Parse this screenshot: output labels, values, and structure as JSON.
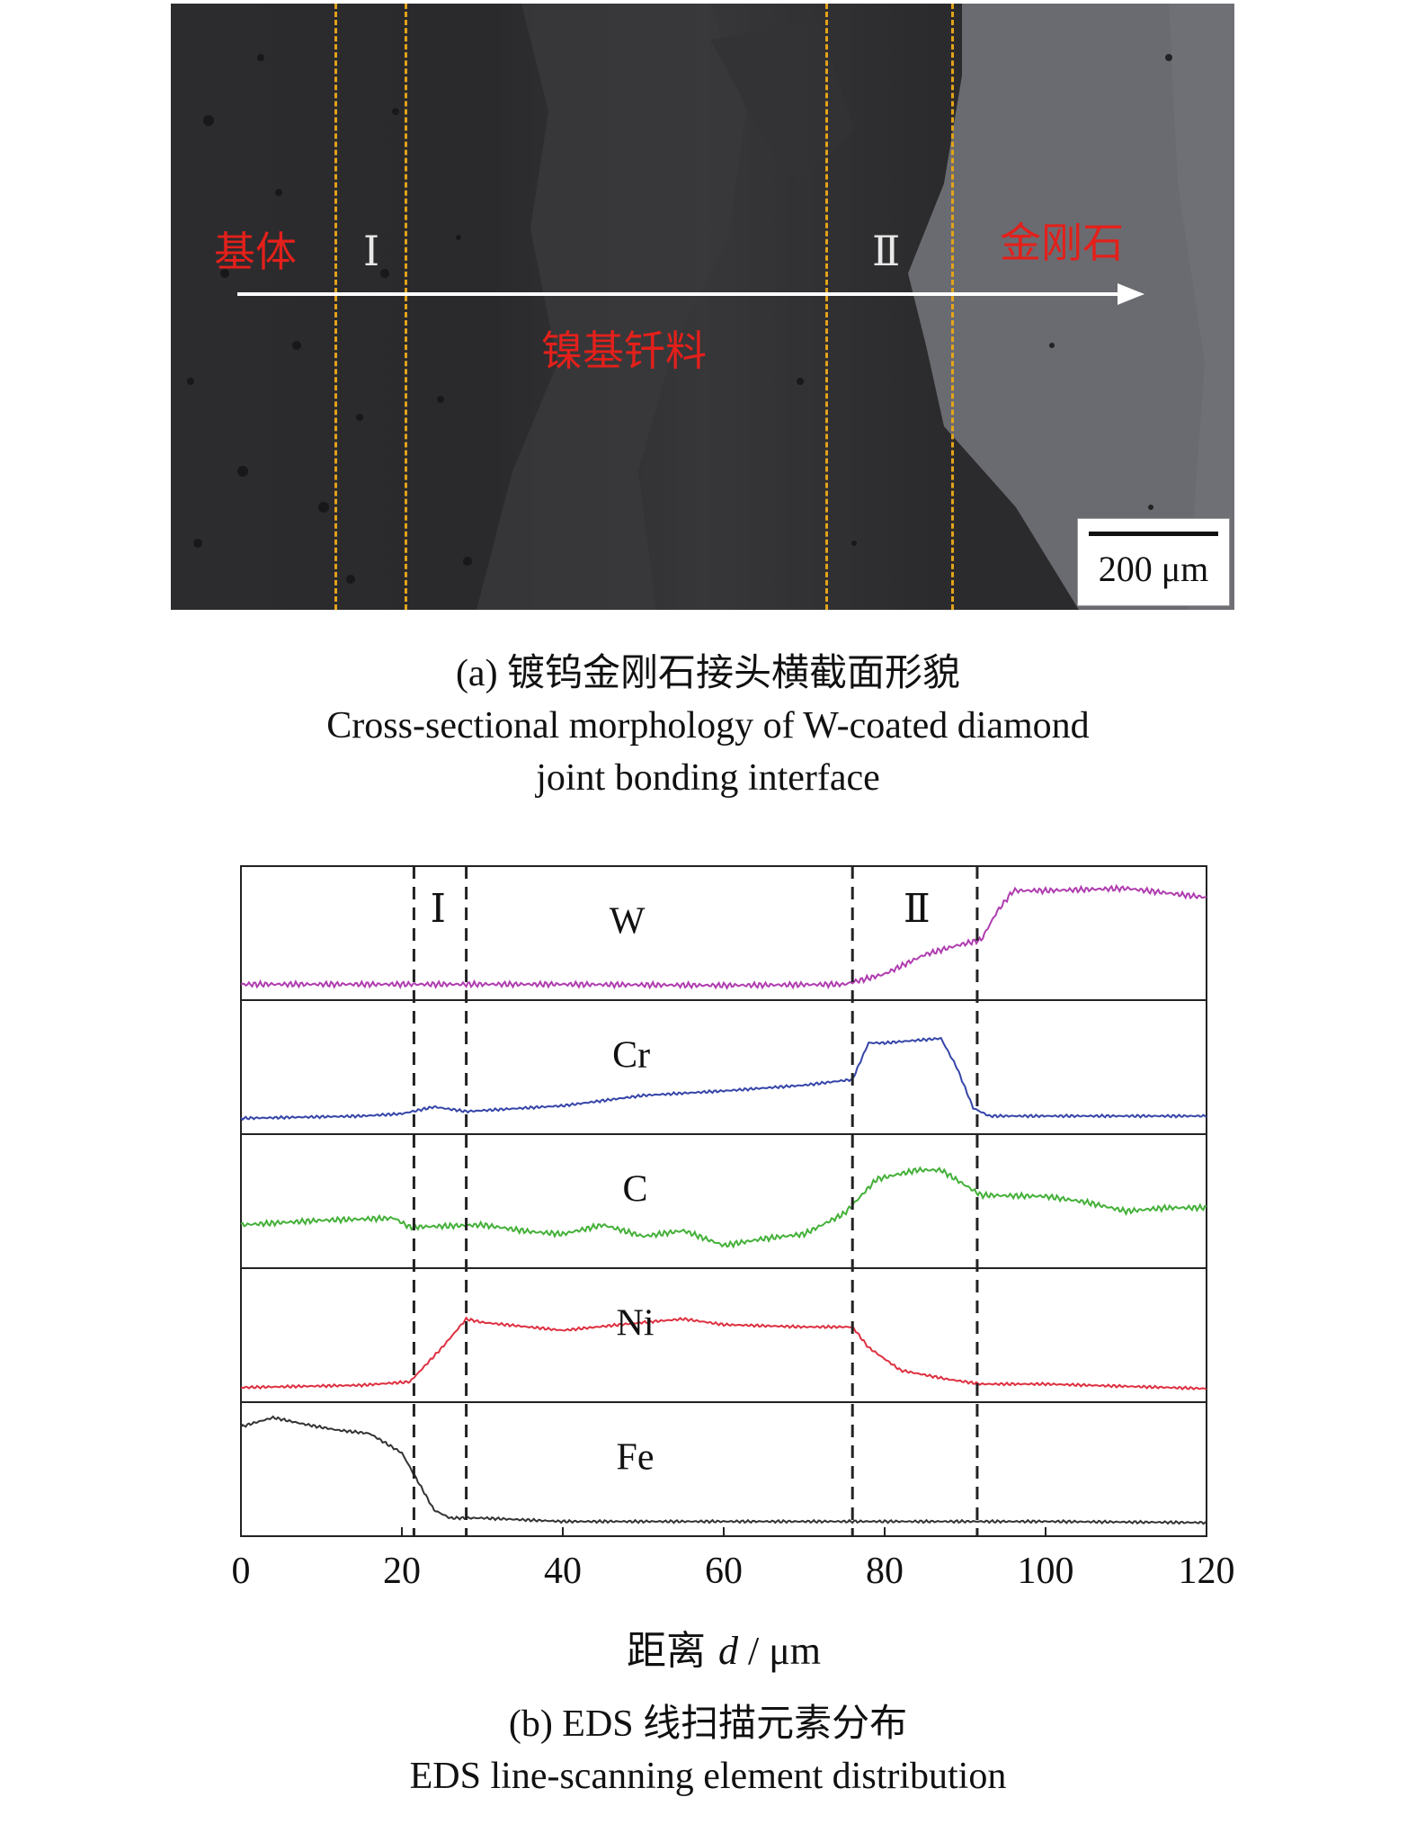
{
  "panel_a": {
    "labels": {
      "substrate": "基体",
      "zone1": "Ⅰ",
      "filler": "镍基钎料",
      "zone2": "Ⅱ",
      "diamond": "金刚石"
    },
    "scale_bar": "200 μm",
    "caption_cn": "(a) 镀钨金刚石接头横截面形貌",
    "caption_en_1": "Cross-sectional morphology of W-coated diamond",
    "caption_en_2": "joint bonding interface"
  },
  "panel_b": {
    "caption_cn": "(b) EDS 线扫描元素分布",
    "caption_en": "EDS line-scanning element distribution"
  },
  "chart_data": {
    "type": "line",
    "xlabel_prefix": "距离 ",
    "xlabel_var": "d",
    "xlabel_unit": " / μm",
    "xlim": [
      0,
      120
    ],
    "xticks": [
      "0",
      "20",
      "40",
      "60",
      "80",
      "100",
      "120"
    ],
    "boundaries": [
      21.5,
      28,
      76,
      91.5
    ],
    "zone_labels": [
      {
        "text": "Ⅰ",
        "x": 24.5
      },
      {
        "text": "Ⅱ",
        "x": 84
      }
    ],
    "series": [
      {
        "name": "W",
        "color": "#b03cb0",
        "label_x": 48,
        "points": [
          [
            0,
            0.06
          ],
          [
            20,
            0.06
          ],
          [
            40,
            0.06
          ],
          [
            60,
            0.05
          ],
          [
            75,
            0.06
          ],
          [
            80,
            0.15
          ],
          [
            85,
            0.32
          ],
          [
            89,
            0.4
          ],
          [
            92,
            0.45
          ],
          [
            94,
            0.7
          ],
          [
            96,
            0.88
          ],
          [
            100,
            0.88
          ],
          [
            110,
            0.9
          ],
          [
            120,
            0.82
          ]
        ]
      },
      {
        "name": "Cr",
        "color": "#3545a8",
        "label_x": 48.5,
        "points": [
          [
            0,
            0.06
          ],
          [
            15,
            0.08
          ],
          [
            20,
            0.1
          ],
          [
            24,
            0.16
          ],
          [
            28,
            0.12
          ],
          [
            40,
            0.17
          ],
          [
            50,
            0.26
          ],
          [
            60,
            0.3
          ],
          [
            70,
            0.35
          ],
          [
            76,
            0.4
          ],
          [
            78,
            0.72
          ],
          [
            80,
            0.72
          ],
          [
            87,
            0.76
          ],
          [
            89,
            0.5
          ],
          [
            91,
            0.15
          ],
          [
            93,
            0.08
          ],
          [
            120,
            0.08
          ]
        ]
      },
      {
        "name": "C",
        "color": "#43b038",
        "label_x": 49,
        "points": [
          [
            0,
            0.3
          ],
          [
            10,
            0.34
          ],
          [
            19,
            0.36
          ],
          [
            21,
            0.28
          ],
          [
            30,
            0.3
          ],
          [
            36,
            0.24
          ],
          [
            40,
            0.22
          ],
          [
            45,
            0.3
          ],
          [
            50,
            0.2
          ],
          [
            55,
            0.25
          ],
          [
            60,
            0.12
          ],
          [
            65,
            0.18
          ],
          [
            70,
            0.22
          ],
          [
            75,
            0.4
          ],
          [
            79,
            0.7
          ],
          [
            84,
            0.78
          ],
          [
            87,
            0.78
          ],
          [
            92,
            0.56
          ],
          [
            100,
            0.55
          ],
          [
            105,
            0.5
          ],
          [
            110,
            0.42
          ],
          [
            115,
            0.45
          ],
          [
            120,
            0.45
          ]
        ]
      },
      {
        "name": "Ni",
        "color": "#de3040",
        "label_x": 49,
        "points": [
          [
            0,
            0.05
          ],
          [
            15,
            0.07
          ],
          [
            21,
            0.1
          ],
          [
            25,
            0.4
          ],
          [
            28,
            0.65
          ],
          [
            30,
            0.62
          ],
          [
            40,
            0.55
          ],
          [
            50,
            0.62
          ],
          [
            55,
            0.65
          ],
          [
            60,
            0.6
          ],
          [
            70,
            0.58
          ],
          [
            76,
            0.58
          ],
          [
            78,
            0.4
          ],
          [
            82,
            0.2
          ],
          [
            88,
            0.12
          ],
          [
            92,
            0.08
          ],
          [
            100,
            0.08
          ],
          [
            110,
            0.06
          ],
          [
            120,
            0.04
          ]
        ]
      },
      {
        "name": "Fe",
        "color": "#333333",
        "label_x": 49,
        "points": [
          [
            0,
            0.88
          ],
          [
            4,
            0.96
          ],
          [
            8,
            0.9
          ],
          [
            12,
            0.85
          ],
          [
            16,
            0.82
          ],
          [
            20,
            0.65
          ],
          [
            22,
            0.4
          ],
          [
            24,
            0.15
          ],
          [
            26,
            0.08
          ],
          [
            30,
            0.08
          ],
          [
            40,
            0.05
          ],
          [
            60,
            0.05
          ],
          [
            80,
            0.05
          ],
          [
            100,
            0.05
          ],
          [
            120,
            0.04
          ]
        ]
      }
    ]
  }
}
